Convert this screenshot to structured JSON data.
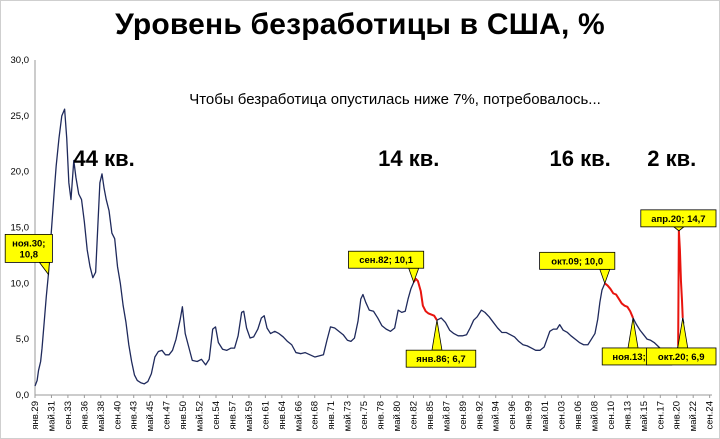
{
  "chart_data": {
    "type": "line",
    "title": "Уровень безработицы в США, %",
    "subtitle": "Чтобы безработица опустилась ниже 7%, потребовалось...",
    "ylim": [
      0,
      30
    ],
    "yticks": [
      "0,0",
      "5,0",
      "10,0",
      "15,0",
      "20,0",
      "25,0",
      "30,0"
    ],
    "xlim": [
      1929,
      2025
    ],
    "xticks": [
      "янв.29",
      "май.31",
      "сен.33",
      "янв.36",
      "май.38",
      "сен.40",
      "янв.43",
      "май.45",
      "сен.47",
      "янв.50",
      "май.52",
      "сен.54",
      "янв.57",
      "май.59",
      "сен.61",
      "янв.64",
      "май.66",
      "сен.68",
      "янв.71",
      "май.73",
      "сен.75",
      "янв.78",
      "май.80",
      "сен.82",
      "янв.85",
      "май.87",
      "сен.89",
      "янв.92",
      "май.94",
      "сен.96",
      "янв.99",
      "май.01",
      "сен.03",
      "янв.06",
      "май.08",
      "сен.10",
      "янв.13",
      "май.15",
      "сен.17",
      "янв.20",
      "май.22",
      "сен.24"
    ],
    "series": [
      {
        "color": "#1f2a5c",
        "points": [
          [
            1929.0,
            0.8
          ],
          [
            1929.3,
            1.3
          ],
          [
            1929.5,
            2.2
          ],
          [
            1929.8,
            3.0
          ],
          [
            1930.0,
            4.2
          ],
          [
            1930.3,
            6.5
          ],
          [
            1930.6,
            8.8
          ],
          [
            1930.9,
            10.8
          ],
          [
            1931.3,
            14.5
          ],
          [
            1931.7,
            18.0
          ],
          [
            1932.0,
            20.5
          ],
          [
            1932.4,
            23.0
          ],
          [
            1932.8,
            25.0
          ],
          [
            1933.2,
            25.6
          ],
          [
            1933.5,
            23.0
          ],
          [
            1933.8,
            19.0
          ],
          [
            1934.1,
            17.5
          ],
          [
            1934.5,
            21.0
          ],
          [
            1934.8,
            19.5
          ],
          [
            1935.2,
            18.0
          ],
          [
            1935.6,
            17.5
          ],
          [
            1936.0,
            15.5
          ],
          [
            1936.4,
            13.0
          ],
          [
            1936.8,
            11.5
          ],
          [
            1937.2,
            10.5
          ],
          [
            1937.6,
            11.0
          ],
          [
            1937.9,
            15.0
          ],
          [
            1938.2,
            19.0
          ],
          [
            1938.5,
            19.8
          ],
          [
            1938.8,
            18.5
          ],
          [
            1939.1,
            17.5
          ],
          [
            1939.5,
            16.5
          ],
          [
            1939.9,
            14.5
          ],
          [
            1940.3,
            14.0
          ],
          [
            1940.7,
            11.5
          ],
          [
            1941.1,
            10.0
          ],
          [
            1941.5,
            8.0
          ],
          [
            1941.9,
            6.5
          ],
          [
            1942.3,
            4.5
          ],
          [
            1942.7,
            3.0
          ],
          [
            1943.1,
            1.8
          ],
          [
            1943.5,
            1.3
          ],
          [
            1944.0,
            1.1
          ],
          [
            1944.5,
            1.0
          ],
          [
            1945.0,
            1.2
          ],
          [
            1945.5,
            1.9
          ],
          [
            1946.0,
            3.4
          ],
          [
            1946.5,
            3.9
          ],
          [
            1947.0,
            4.0
          ],
          [
            1947.5,
            3.6
          ],
          [
            1948.0,
            3.6
          ],
          [
            1948.5,
            4.0
          ],
          [
            1949.0,
            5.0
          ],
          [
            1949.6,
            6.8
          ],
          [
            1949.9,
            7.9
          ],
          [
            1950.3,
            5.5
          ],
          [
            1950.8,
            4.3
          ],
          [
            1951.3,
            3.1
          ],
          [
            1952.0,
            3.0
          ],
          [
            1952.6,
            3.2
          ],
          [
            1953.2,
            2.7
          ],
          [
            1953.7,
            3.2
          ],
          [
            1954.2,
            5.9
          ],
          [
            1954.6,
            6.1
          ],
          [
            1955.0,
            4.7
          ],
          [
            1955.6,
            4.1
          ],
          [
            1956.2,
            4.0
          ],
          [
            1956.8,
            4.2
          ],
          [
            1957.3,
            4.2
          ],
          [
            1957.8,
            5.3
          ],
          [
            1958.3,
            7.4
          ],
          [
            1958.6,
            7.5
          ],
          [
            1959.0,
            6.0
          ],
          [
            1959.5,
            5.1
          ],
          [
            1960.0,
            5.2
          ],
          [
            1960.6,
            5.9
          ],
          [
            1961.1,
            6.9
          ],
          [
            1961.5,
            7.1
          ],
          [
            1961.9,
            6.0
          ],
          [
            1962.4,
            5.5
          ],
          [
            1963.0,
            5.7
          ],
          [
            1963.6,
            5.5
          ],
          [
            1964.2,
            5.2
          ],
          [
            1964.8,
            4.8
          ],
          [
            1965.4,
            4.5
          ],
          [
            1966.0,
            3.8
          ],
          [
            1966.7,
            3.7
          ],
          [
            1967.3,
            3.8
          ],
          [
            1968.0,
            3.6
          ],
          [
            1968.7,
            3.4
          ],
          [
            1969.3,
            3.5
          ],
          [
            1969.9,
            3.6
          ],
          [
            1970.4,
            4.9
          ],
          [
            1970.9,
            6.1
          ],
          [
            1971.5,
            6.0
          ],
          [
            1972.1,
            5.7
          ],
          [
            1972.7,
            5.4
          ],
          [
            1973.3,
            4.9
          ],
          [
            1973.8,
            4.8
          ],
          [
            1974.3,
            5.1
          ],
          [
            1974.8,
            6.6
          ],
          [
            1975.2,
            8.6
          ],
          [
            1975.5,
            9.0
          ],
          [
            1975.9,
            8.3
          ],
          [
            1976.4,
            7.6
          ],
          [
            1977.0,
            7.5
          ],
          [
            1977.6,
            6.9
          ],
          [
            1978.2,
            6.2
          ],
          [
            1978.8,
            5.9
          ],
          [
            1979.4,
            5.7
          ],
          [
            1980.0,
            6.0
          ],
          [
            1980.5,
            7.6
          ],
          [
            1981.0,
            7.4
          ],
          [
            1981.5,
            7.5
          ],
          [
            1981.9,
            8.6
          ],
          [
            1982.3,
            9.5
          ],
          [
            1982.7,
            10.1
          ]
        ]
      },
      {
        "color": "#e8140e",
        "points": [
          [
            1982.7,
            10.1
          ],
          [
            1983.0,
            10.4
          ],
          [
            1983.3,
            10.2
          ],
          [
            1983.7,
            9.3
          ],
          [
            1984.0,
            8.0
          ],
          [
            1984.4,
            7.5
          ],
          [
            1984.8,
            7.3
          ],
          [
            1985.2,
            7.2
          ],
          [
            1985.6,
            7.1
          ],
          [
            1986.0,
            6.7
          ]
        ]
      },
      {
        "color": "#1f2a5c",
        "points": [
          [
            1986.0,
            6.7
          ],
          [
            1986.6,
            6.9
          ],
          [
            1987.2,
            6.5
          ],
          [
            1987.8,
            5.8
          ],
          [
            1988.4,
            5.5
          ],
          [
            1989.0,
            5.3
          ],
          [
            1989.6,
            5.3
          ],
          [
            1990.2,
            5.4
          ],
          [
            1990.7,
            6.0
          ],
          [
            1991.2,
            6.7
          ],
          [
            1991.7,
            7.0
          ],
          [
            1992.3,
            7.6
          ],
          [
            1992.8,
            7.4
          ],
          [
            1993.4,
            7.0
          ],
          [
            1994.0,
            6.5
          ],
          [
            1994.6,
            6.0
          ],
          [
            1995.2,
            5.6
          ],
          [
            1995.8,
            5.6
          ],
          [
            1996.4,
            5.4
          ],
          [
            1997.0,
            5.2
          ],
          [
            1997.6,
            4.8
          ],
          [
            1998.2,
            4.5
          ],
          [
            1998.8,
            4.4
          ],
          [
            1999.4,
            4.2
          ],
          [
            2000.0,
            4.0
          ],
          [
            2000.6,
            4.0
          ],
          [
            2001.2,
            4.3
          ],
          [
            2001.6,
            5.0
          ],
          [
            2002.0,
            5.7
          ],
          [
            2002.5,
            5.9
          ],
          [
            2003.0,
            5.9
          ],
          [
            2003.4,
            6.3
          ],
          [
            2003.9,
            5.8
          ],
          [
            2004.5,
            5.6
          ],
          [
            2005.0,
            5.3
          ],
          [
            2005.6,
            5.0
          ],
          [
            2006.2,
            4.7
          ],
          [
            2006.8,
            4.5
          ],
          [
            2007.4,
            4.5
          ],
          [
            2007.9,
            5.0
          ],
          [
            2008.4,
            5.5
          ],
          [
            2008.8,
            6.8
          ],
          [
            2009.1,
            8.3
          ],
          [
            2009.4,
            9.4
          ],
          [
            2009.8,
            10.0
          ]
        ]
      },
      {
        "color": "#e8140e",
        "points": [
          [
            2009.8,
            10.0
          ],
          [
            2010.2,
            9.8
          ],
          [
            2010.6,
            9.5
          ],
          [
            2011.0,
            9.1
          ],
          [
            2011.4,
            9.0
          ],
          [
            2011.8,
            8.6
          ],
          [
            2012.2,
            8.2
          ],
          [
            2012.6,
            8.0
          ],
          [
            2013.0,
            7.9
          ],
          [
            2013.4,
            7.5
          ],
          [
            2013.8,
            6.9
          ]
        ]
      },
      {
        "color": "#1f2a5c",
        "points": [
          [
            2013.8,
            6.9
          ],
          [
            2014.3,
            6.3
          ],
          [
            2014.8,
            5.8
          ],
          [
            2015.3,
            5.4
          ],
          [
            2015.8,
            5.0
          ],
          [
            2016.3,
            4.9
          ],
          [
            2016.8,
            4.7
          ],
          [
            2017.3,
            4.4
          ],
          [
            2017.8,
            4.1
          ],
          [
            2018.3,
            4.0
          ],
          [
            2018.8,
            3.8
          ],
          [
            2019.3,
            3.6
          ],
          [
            2019.8,
            3.5
          ],
          [
            2020.2,
            4.4
          ]
        ]
      },
      {
        "color": "#e8140e",
        "points": [
          [
            2020.2,
            4.4
          ],
          [
            2020.3,
            14.7
          ],
          [
            2020.45,
            13.0
          ],
          [
            2020.6,
            10.2
          ],
          [
            2020.75,
            8.4
          ],
          [
            2020.85,
            6.9
          ]
        ]
      },
      {
        "color": "#1f2a5c",
        "points": [
          [
            2020.85,
            6.9
          ],
          [
            2021.0,
            6.4
          ]
        ]
      }
    ],
    "annotations": [
      {
        "text": "44 кв.",
        "x": 1938.8
      },
      {
        "text": "14 кв.",
        "x": 1982.0
      },
      {
        "text": "16 кв.",
        "x": 2006.3
      },
      {
        "text": "2 кв.",
        "x": 2019.3
      }
    ],
    "callouts": [
      {
        "lines": [
          "ноя.30;",
          "10,8"
        ],
        "x": 1930.9,
        "y": 10.8,
        "pos": "left"
      },
      {
        "lines": [
          "сен.82; 10,1"
        ],
        "x": 1982.7,
        "y": 10.1,
        "pos": "above-left"
      },
      {
        "lines": [
          "янв.86; 6,7"
        ],
        "x": 1986.0,
        "y": 6.7,
        "pos": "below"
      },
      {
        "lines": [
          "окт.09; 10,0"
        ],
        "x": 2009.8,
        "y": 10.0,
        "pos": "above-left"
      },
      {
        "lines": [
          "ноя.13; 6,9"
        ],
        "x": 2013.8,
        "y": 6.9,
        "pos": "below"
      },
      {
        "lines": [
          "апр.20; 14,7"
        ],
        "x": 2020.3,
        "y": 14.7,
        "pos": "above"
      },
      {
        "lines": [
          "окт.20; 6,9"
        ],
        "x": 2020.85,
        "y": 6.9,
        "pos": "below"
      }
    ]
  }
}
